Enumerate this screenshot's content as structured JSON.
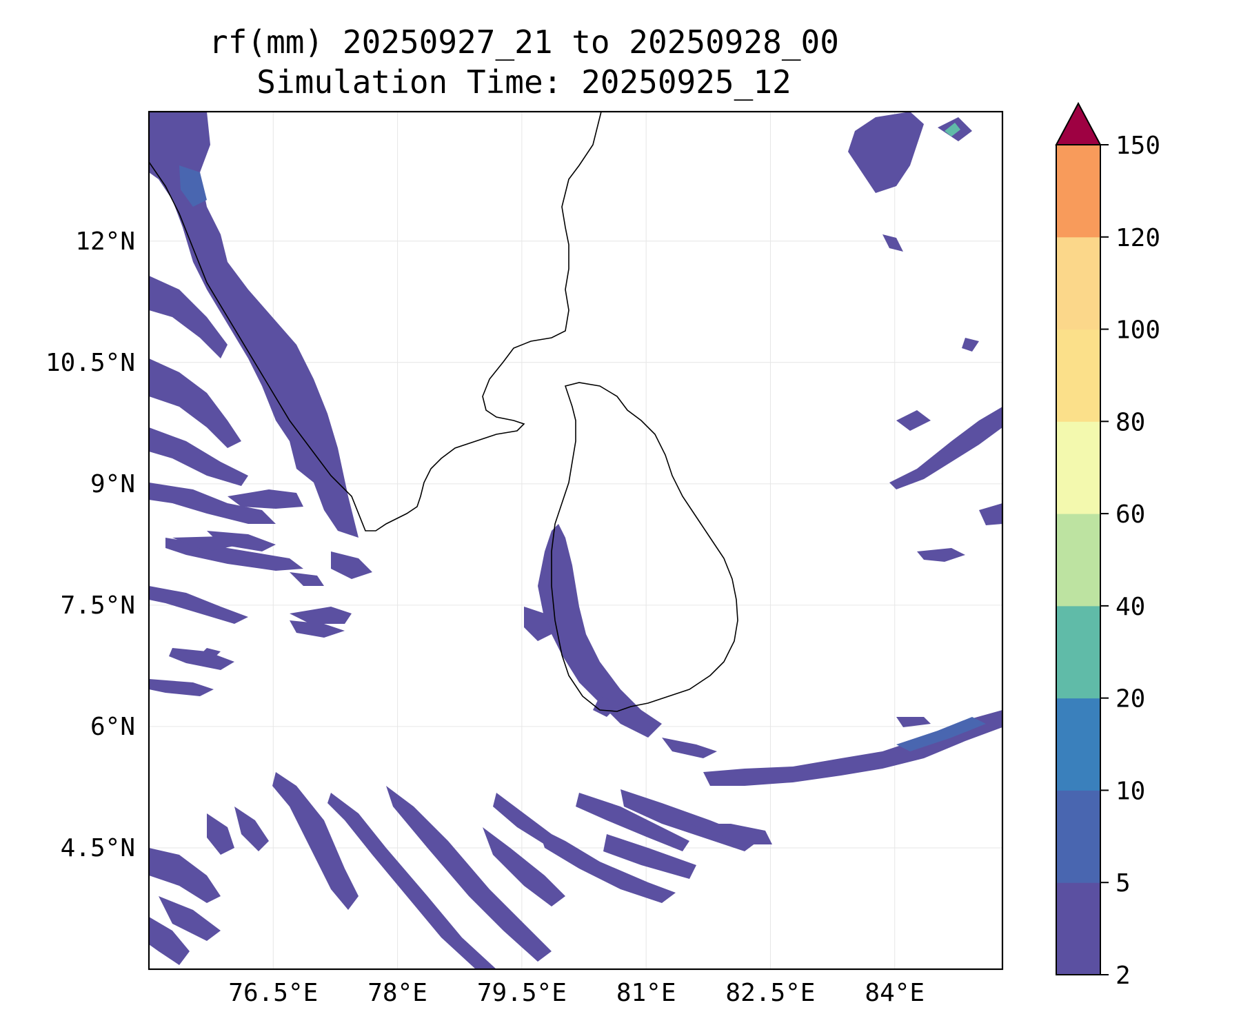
{
  "title": {
    "line1": "rf(mm) 20250927_21 to 20250928_00",
    "line2": "Simulation Time: 20250925_12"
  },
  "map": {
    "lon_range": [
      75.0,
      85.3
    ],
    "lat_range": [
      3.0,
      13.6
    ],
    "lon_ticks": [
      76.5,
      78.0,
      79.5,
      81.0,
      82.5,
      84.0
    ],
    "lon_tick_labels": [
      "76.5°E",
      "78°E",
      "79.5°E",
      "81°E",
      "82.5°E",
      "84°E"
    ],
    "lat_ticks": [
      12.0,
      10.5,
      9.0,
      7.5,
      6.0,
      4.5
    ],
    "lat_tick_labels": [
      "12°N",
      "10.5°N",
      "9°N",
      "7.5°N",
      "6°N",
      "4.5°N"
    ],
    "gridlines": true,
    "coastline_color": "#000000"
  },
  "colorbar": {
    "levels": [
      2,
      5,
      10,
      20,
      40,
      60,
      80,
      100,
      120,
      150
    ],
    "level_labels": [
      "2",
      "5",
      "10",
      "20",
      "40",
      "60",
      "80",
      "100",
      "120",
      "150"
    ],
    "colors": [
      "#5b50a1",
      "#4966b0",
      "#3a80bc",
      "#60bba8",
      "#bde3a1",
      "#f3f9ae",
      "#fbe08a",
      "#fbd78a",
      "#f89b5b",
      "#d23c4f"
    ],
    "extend_color": "#9e0142",
    "extend": "max",
    "orientation": "vertical",
    "position": "right"
  },
  "rain_fields": {
    "dominant_class": "2-5 mm",
    "regions": [
      "west coast of India",
      "Arabian Sea streaks",
      "southern Bay of Bengal band",
      "west coast of Sri Lanka",
      "south Indian Ocean streaks",
      "north-east Bay of Bengal"
    ]
  }
}
